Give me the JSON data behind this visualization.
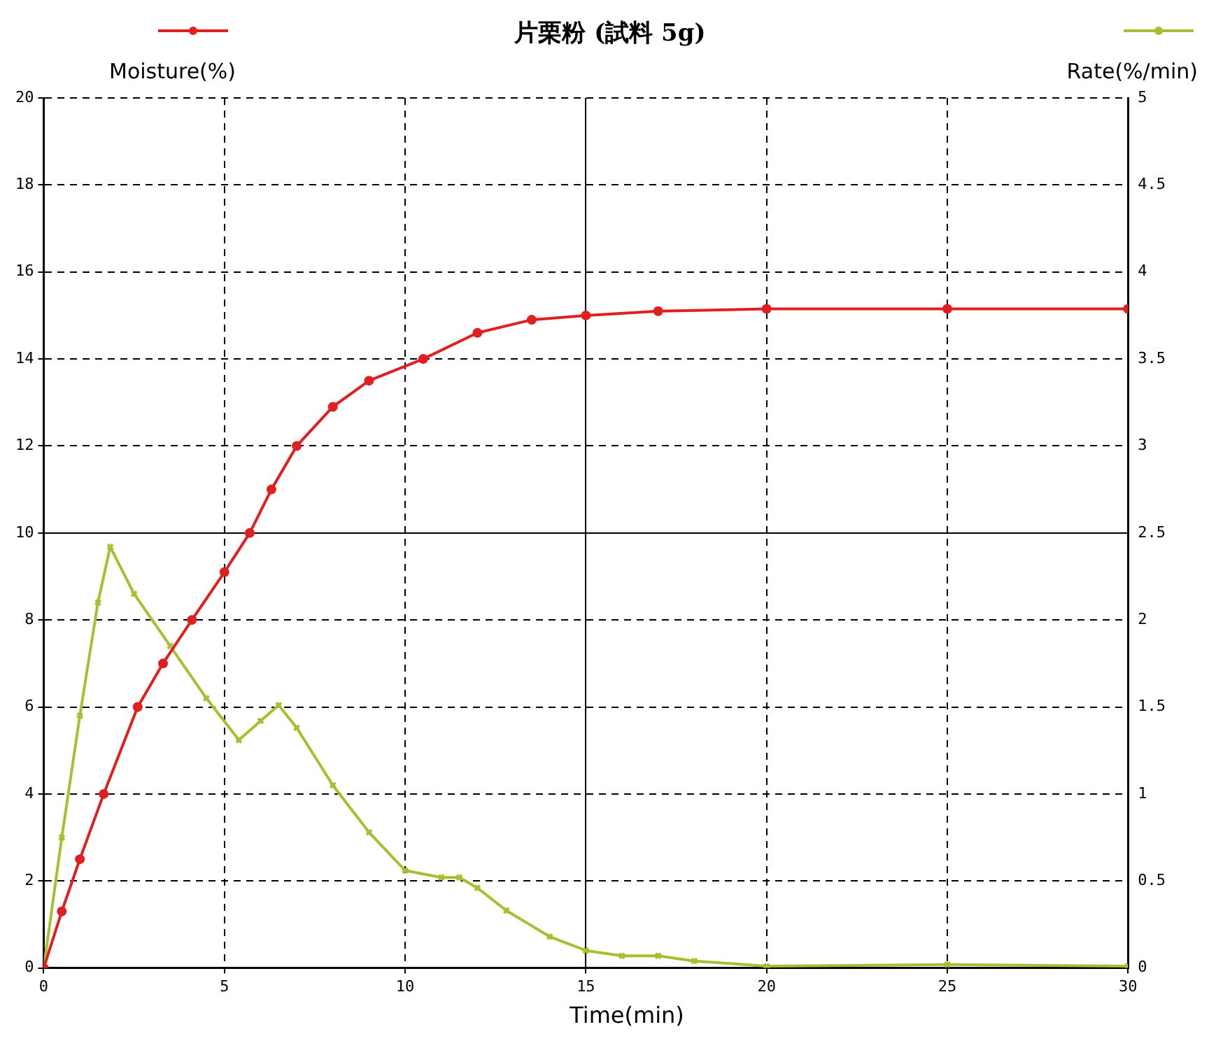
{
  "chart_data": {
    "type": "line",
    "title": "片栗粉 (試料 5g)",
    "xlabel": "Time(min)",
    "ylabel": "Moisture(%)",
    "y2label": "Rate(%/min)",
    "xlim": [
      0,
      30
    ],
    "xticks": [
      0,
      5,
      10,
      15,
      20,
      25,
      30
    ],
    "ylim": [
      0,
      20
    ],
    "yticks": [
      0,
      2,
      4,
      6,
      8,
      10,
      12,
      14,
      16,
      18,
      20
    ],
    "y2lim": [
      0,
      5
    ],
    "y2ticks": [
      0,
      0.5,
      1,
      1.5,
      2,
      2.5,
      3,
      3.5,
      4,
      4.5,
      5
    ],
    "grid": true,
    "series": [
      {
        "color": "#e02020",
        "marker": "circle",
        "x": [
          0,
          0.5,
          1,
          1.66,
          2.6,
          3.3,
          4.1,
          5,
          5.7,
          6.3,
          7,
          8,
          9,
          10.5,
          12,
          13.5,
          15,
          17,
          20,
          25,
          30
        ],
        "values": [
          0,
          1.3,
          2.5,
          4,
          6,
          7,
          8,
          9.1,
          10,
          11,
          12,
          12.9,
          13.5,
          14,
          14.6,
          14.9,
          15,
          15.1,
          15.15,
          15.15,
          15.15
        ]
      },
      {
        "color": "#a8c030",
        "marker": "cross",
        "axis": "y2",
        "x": [
          0,
          0.5,
          1,
          1.5,
          1.84,
          2.5,
          3.5,
          4.5,
          5.4,
          6,
          6.5,
          7,
          8,
          9,
          10,
          11,
          11.5,
          12,
          12.8,
          14,
          15,
          16,
          17,
          18,
          20,
          25,
          30
        ],
        "values": [
          0,
          0.75,
          1.45,
          2.1,
          2.42,
          2.15,
          1.85,
          1.55,
          1.31,
          1.42,
          1.51,
          1.38,
          1.05,
          0.78,
          0.56,
          0.52,
          0.52,
          0.46,
          0.33,
          0.18,
          0.1,
          0.07,
          0.07,
          0.04,
          0.01,
          0.02,
          0.01
        ]
      }
    ]
  }
}
